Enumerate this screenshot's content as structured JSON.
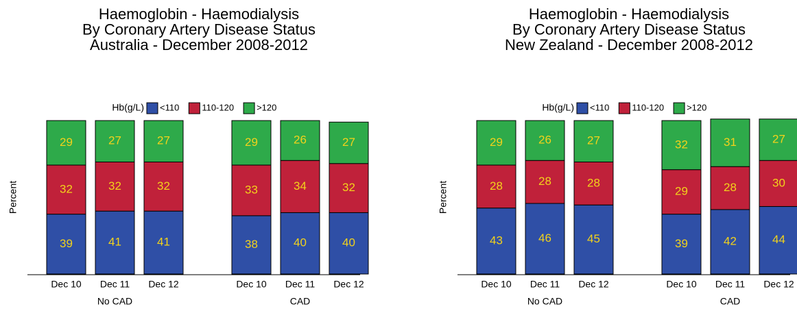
{
  "chart_data": [
    {
      "type": "stacked-bar",
      "title": [
        "Haemoglobin - Haemodialysis",
        "By Coronary Artery Disease Status",
        "Australia - December 2008-2012"
      ],
      "y_label": "Percent",
      "legend_title": "Hb(g/L)",
      "categories": [
        "Dec 10",
        "Dec 11",
        "Dec 12",
        "Dec 10",
        "Dec 11",
        "Dec 12"
      ],
      "groups": [
        "No CAD",
        "CAD"
      ],
      "series": [
        {
          "name": "<110",
          "color": "#2f4fa6",
          "values": [
            39,
            41,
            41,
            38,
            40,
            40
          ]
        },
        {
          "name": "110-120",
          "color": "#c0213a",
          "values": [
            32,
            32,
            32,
            33,
            34,
            32
          ]
        },
        {
          "name": ">120",
          "color": "#2eaa4a",
          "values": [
            29,
            27,
            27,
            29,
            26,
            27
          ]
        }
      ],
      "label_color": "#f2d21b",
      "ylim": [
        0,
        100
      ]
    },
    {
      "type": "stacked-bar",
      "title": [
        "Haemoglobin - Haemodialysis",
        "By Coronary Artery Disease Status",
        "New Zealand - December 2008-2012"
      ],
      "y_label": "Percent",
      "legend_title": "Hb(g/L)",
      "categories": [
        "Dec 10",
        "Dec 11",
        "Dec 12",
        "Dec 10",
        "Dec 11",
        "Dec 12"
      ],
      "groups": [
        "No CAD",
        "CAD"
      ],
      "series": [
        {
          "name": "<110",
          "color": "#2f4fa6",
          "values": [
            43,
            46,
            45,
            39,
            42,
            44
          ]
        },
        {
          "name": "110-120",
          "color": "#c0213a",
          "values": [
            28,
            28,
            28,
            29,
            28,
            30
          ]
        },
        {
          "name": ">120",
          "color": "#2eaa4a",
          "values": [
            29,
            26,
            27,
            32,
            31,
            27
          ]
        }
      ],
      "label_color": "#f2d21b",
      "ylim": [
        0,
        100
      ]
    }
  ]
}
